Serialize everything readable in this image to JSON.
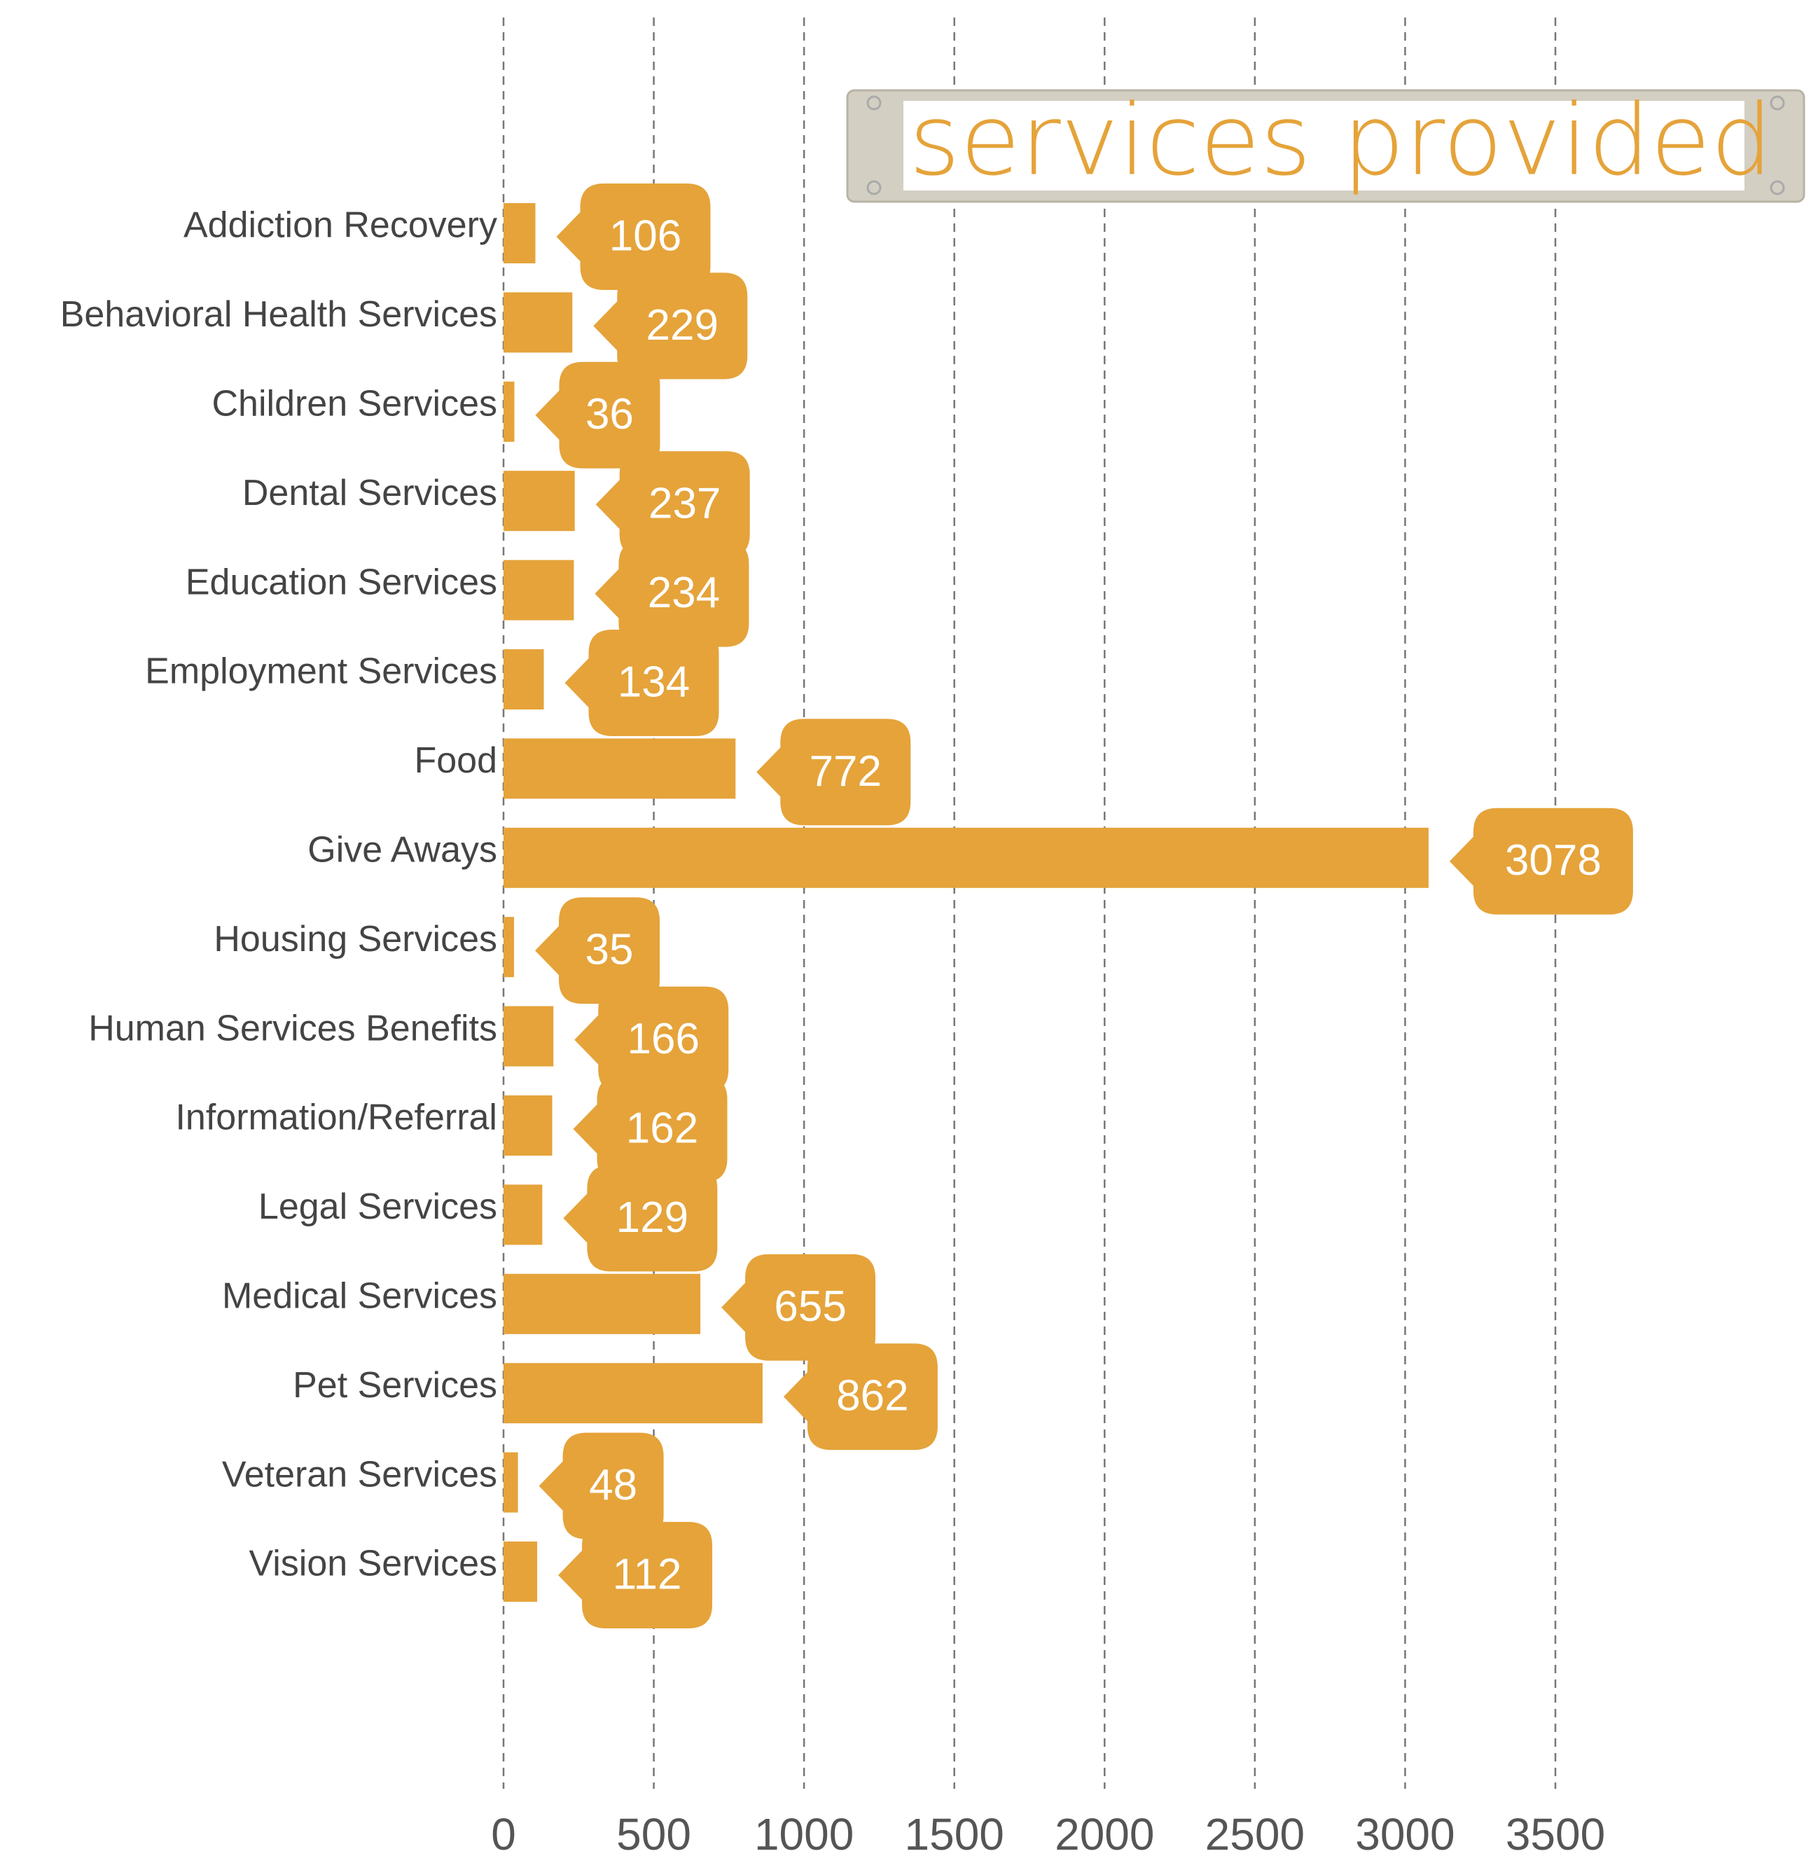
{
  "chart_data": {
    "type": "bar",
    "orientation": "horizontal",
    "title": "services provided",
    "categories": [
      "Addiction Recovery",
      "Behavioral Health Services",
      "Children Services",
      "Dental Services",
      "Education Services",
      "Employment Services",
      "Food",
      "Give Aways",
      "Housing Services",
      "Human Services Benefits",
      "Information/Referral",
      "Legal Services",
      "Medical Services",
      "Pet Services",
      "Veteran Services",
      "Vision Services"
    ],
    "values": [
      106,
      229,
      36,
      237,
      234,
      134,
      772,
      3078,
      35,
      166,
      162,
      129,
      655,
      862,
      48,
      112
    ],
    "color": "#e5a33a",
    "xlim": [
      0,
      3500
    ],
    "xticks": [
      0,
      500,
      1000,
      1500,
      2000,
      2500,
      3000,
      3500
    ],
    "grid": true
  }
}
